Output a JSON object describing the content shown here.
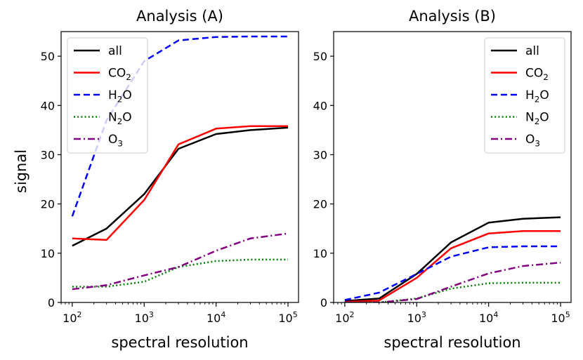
{
  "figure": {
    "ylabel": "signal",
    "xlabel": "spectral resolution"
  },
  "chart_data": [
    {
      "type": "line",
      "title": "Analysis (A)",
      "xlabel": "spectral resolution",
      "ylabel": "signal",
      "xscale": "log",
      "xlim": [
        70,
        140000
      ],
      "ylim": [
        0,
        55
      ],
      "xticks": [
        {
          "value": 100,
          "mant": "10",
          "exp": "2"
        },
        {
          "value": 1000,
          "mant": "10",
          "exp": "3"
        },
        {
          "value": 10000,
          "mant": "10",
          "exp": "4"
        },
        {
          "value": 100000,
          "mant": "10",
          "exp": "5"
        }
      ],
      "yticks": [
        0,
        10,
        20,
        30,
        40,
        50
      ],
      "grid": false,
      "legend_position": "top-left",
      "x": [
        100,
        300,
        1000,
        3000,
        10000,
        30000,
        100000
      ],
      "series": [
        {
          "name": "all",
          "label_main": "all",
          "label_sub": "",
          "label_tail": "",
          "color": "#000000",
          "style": "solid",
          "values": [
            11.5,
            15,
            22,
            31.2,
            34.2,
            35,
            35.5
          ]
        },
        {
          "name": "CO2",
          "label_main": "CO",
          "label_sub": "2",
          "label_tail": "",
          "color": "#ff0000",
          "style": "solid",
          "values": [
            13,
            12.7,
            20.8,
            32.1,
            35.3,
            35.8,
            35.8
          ]
        },
        {
          "name": "H2O",
          "label_main": "H",
          "label_sub": "2",
          "label_tail": "O",
          "color": "#0000ff",
          "style": "dashed",
          "values": [
            17.5,
            37,
            49,
            53.2,
            53.9,
            54,
            54
          ]
        },
        {
          "name": "N2O",
          "label_main": "N",
          "label_sub": "2",
          "label_tail": "O",
          "color": "#008000",
          "style": "dotted",
          "values": [
            3.2,
            3.2,
            4.2,
            7.2,
            8.4,
            8.7,
            8.7
          ]
        },
        {
          "name": "O3",
          "label_main": "O",
          "label_sub": "3",
          "label_tail": "",
          "color": "#800080",
          "style": "dashdot",
          "values": [
            2.7,
            3.5,
            5.5,
            7.2,
            10.5,
            13,
            14
          ]
        }
      ]
    },
    {
      "type": "line",
      "title": "Analysis (B)",
      "xlabel": "spectral resolution",
      "ylabel": "",
      "xscale": "log",
      "xlim": [
        70,
        140000
      ],
      "ylim": [
        0,
        55
      ],
      "xticks": [
        {
          "value": 100,
          "mant": "10",
          "exp": "2"
        },
        {
          "value": 1000,
          "mant": "10",
          "exp": "3"
        },
        {
          "value": 10000,
          "mant": "10",
          "exp": "4"
        },
        {
          "value": 100000,
          "mant": "10",
          "exp": "5"
        }
      ],
      "yticks": [
        0,
        10,
        20,
        30,
        40,
        50
      ],
      "grid": false,
      "legend_position": "top-right",
      "x": [
        100,
        300,
        1000,
        3000,
        10000,
        30000,
        100000
      ],
      "series": [
        {
          "name": "all",
          "label_main": "all",
          "label_sub": "",
          "label_tail": "",
          "color": "#000000",
          "style": "solid",
          "values": [
            0.3,
            0.8,
            5.8,
            12.2,
            16.2,
            17,
            17.3
          ]
        },
        {
          "name": "CO2",
          "label_main": "CO",
          "label_sub": "2",
          "label_tail": "",
          "color": "#ff0000",
          "style": "solid",
          "values": [
            0.1,
            0.4,
            5,
            11,
            14,
            14.5,
            14.5
          ]
        },
        {
          "name": "H2O",
          "label_main": "H",
          "label_sub": "2",
          "label_tail": "O",
          "color": "#0000ff",
          "style": "dashed",
          "values": [
            0.5,
            2,
            5.8,
            9.3,
            11.2,
            11.4,
            11.4
          ]
        },
        {
          "name": "N2O",
          "label_main": "N",
          "label_sub": "2",
          "label_tail": "O",
          "color": "#008000",
          "style": "dotted",
          "values": [
            0,
            0,
            0.8,
            2.8,
            3.9,
            4,
            4
          ]
        },
        {
          "name": "O3",
          "label_main": "O",
          "label_sub": "3",
          "label_tail": "",
          "color": "#800080",
          "style": "dashdot",
          "values": [
            0,
            0,
            0.7,
            3.2,
            5.9,
            7.4,
            8.1
          ]
        }
      ]
    }
  ]
}
